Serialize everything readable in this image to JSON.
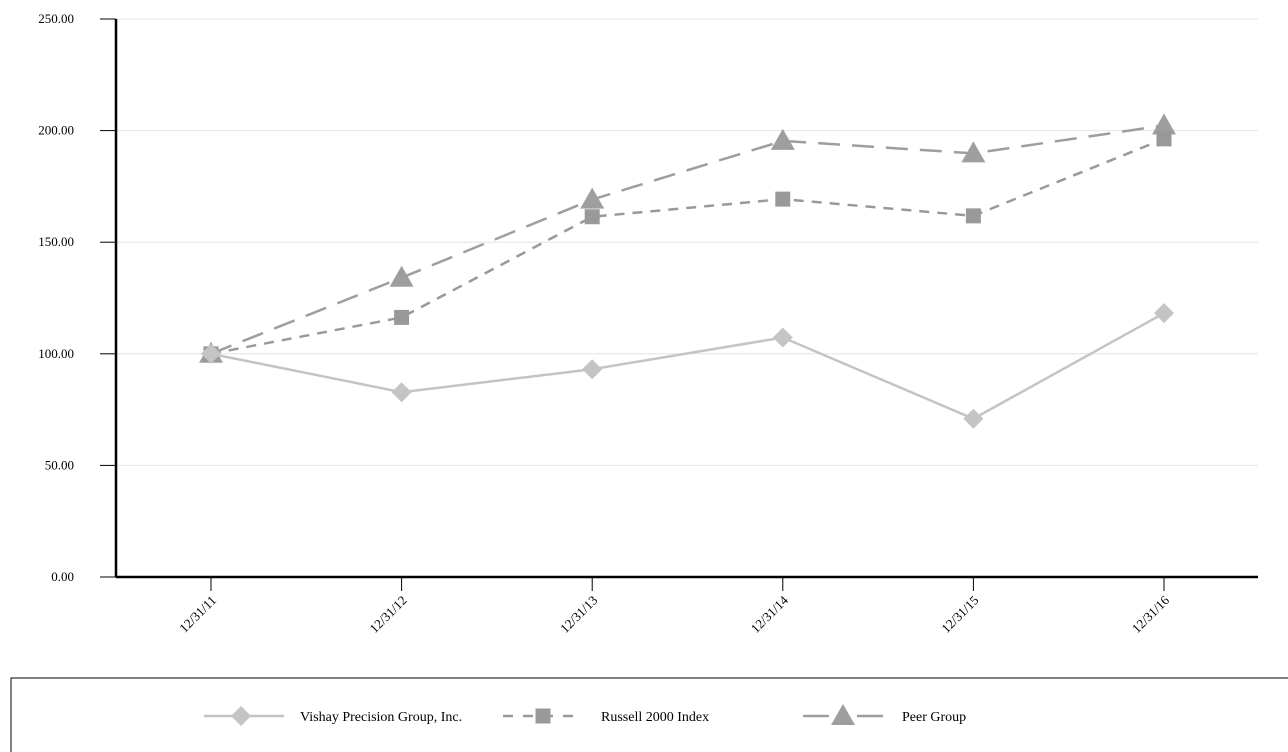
{
  "chart_data": {
    "type": "line",
    "categories": [
      "12/31/11",
      "12/31/12",
      "12/31/13",
      "12/31/14",
      "12/31/15",
      "12/31/16"
    ],
    "series": [
      {
        "name": "Vishay Precision Group, Inc.",
        "values": [
          100.0,
          82.8,
          93.1,
          107.3,
          70.9,
          118.2
        ],
        "color": "#c4c4c4",
        "marker": "diamond",
        "dash": "solid"
      },
      {
        "name": "Russell 2000 Index",
        "values": [
          100.0,
          116.3,
          161.4,
          169.3,
          161.8,
          196.3
        ],
        "color": "#999999",
        "marker": "square",
        "dash": "dashed"
      },
      {
        "name": "Peer Group",
        "values": [
          100.0,
          134.1,
          169.1,
          195.4,
          189.8,
          202.3
        ],
        "color": "#9e9e9e",
        "marker": "triangle",
        "dash": "longdash"
      }
    ],
    "yticks": [
      "0.00",
      "50.00",
      "100.00",
      "150.00",
      "200.00",
      "250.00"
    ],
    "ylim": [
      0,
      250
    ],
    "grid": true,
    "legend": "bottom",
    "title": "",
    "xlabel": "",
    "ylabel": ""
  }
}
